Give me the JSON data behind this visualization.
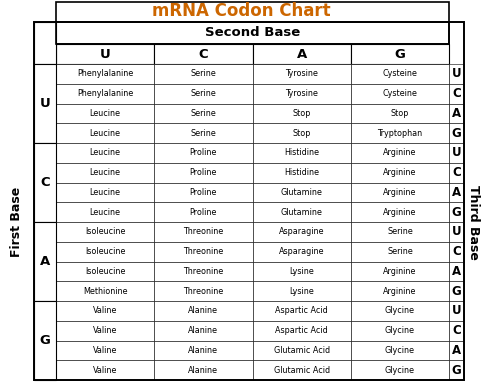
{
  "title": "mRNA Codon Chart",
  "title_color": "#cc6600",
  "second_base_label": "Second Base",
  "first_base_label": "First Base",
  "third_base_label": "Third Base",
  "second_bases": [
    "U",
    "C",
    "A",
    "G"
  ],
  "first_bases": [
    "U",
    "C",
    "A",
    "G"
  ],
  "third_bases": [
    "U",
    "C",
    "A",
    "G"
  ],
  "amino_acids": [
    [
      "Phenylalanine",
      "Serine",
      "Tyrosine",
      "Cysteine"
    ],
    [
      "Phenylalanine",
      "Serine",
      "Tyrosine",
      "Cysteine"
    ],
    [
      "Leucine",
      "Serine",
      "Stop",
      "Stop"
    ],
    [
      "Leucine",
      "Serine",
      "Stop",
      "Tryptophan"
    ],
    [
      "Leucine",
      "Proline",
      "Histidine",
      "Arginine"
    ],
    [
      "Leucine",
      "Proline",
      "Histidine",
      "Arginine"
    ],
    [
      "Leucine",
      "Proline",
      "Glutamine",
      "Arginine"
    ],
    [
      "Leucine",
      "Proline",
      "Glutamine",
      "Arginine"
    ],
    [
      "Isoleucine",
      "Threonine",
      "Asparagine",
      "Serine"
    ],
    [
      "Isoleucine",
      "Threonine",
      "Asparagine",
      "Serine"
    ],
    [
      "Isoleucine",
      "Threonine",
      "Lysine",
      "Arginine"
    ],
    [
      "Methionine",
      "Threonine",
      "Lysine",
      "Arginine"
    ],
    [
      "Valine",
      "Alanine",
      "Aspartic Acid",
      "Glycine"
    ],
    [
      "Valine",
      "Alanine",
      "Aspartic Acid",
      "Glycine"
    ],
    [
      "Valine",
      "Alanine",
      "Glutamic Acid",
      "Glycine"
    ],
    [
      "Valine",
      "Alanine",
      "Glutamic Acid",
      "Glycine"
    ]
  ],
  "bg_color": "#ffffff",
  "cell_text_size": 5.8,
  "header_text_size": 8.5,
  "title_size": 12,
  "first_base_label_size": 8,
  "third_base_label_size": 8
}
